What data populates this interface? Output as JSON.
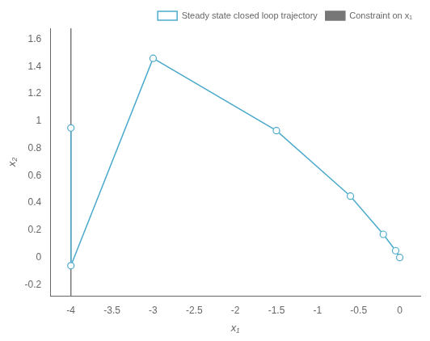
{
  "chart_data": {
    "type": "line",
    "x": [
      -4.0,
      -4.0,
      -3.0,
      -1.5,
      -0.6,
      -0.2,
      -0.05,
      0.0
    ],
    "series": [
      {
        "name": "Steady state closed loop trajectory",
        "color": "#4DAACC",
        "marker": "circle",
        "line_style": "solid",
        "values": [
          0.95,
          -0.06,
          1.46,
          0.93,
          0.45,
          0.17,
          0.05,
          0.0
        ]
      }
    ],
    "vline": {
      "x": -4.0,
      "name": "Constraint on x₁",
      "color": "#777777"
    },
    "xlabel": "x₁",
    "ylabel": "x₂",
    "xlim": [
      -4.25,
      0.25
    ],
    "ylim": [
      -0.28,
      1.68
    ],
    "xticks": [
      -4,
      -3.5,
      -3,
      -2.5,
      -2,
      -1.5,
      -1,
      -0.5,
      0
    ],
    "yticks": [
      -0.2,
      0,
      0.2,
      0.4,
      0.6,
      0.8,
      1,
      1.2,
      1.4,
      1.6
    ],
    "grid": false,
    "legend": "upper right"
  }
}
